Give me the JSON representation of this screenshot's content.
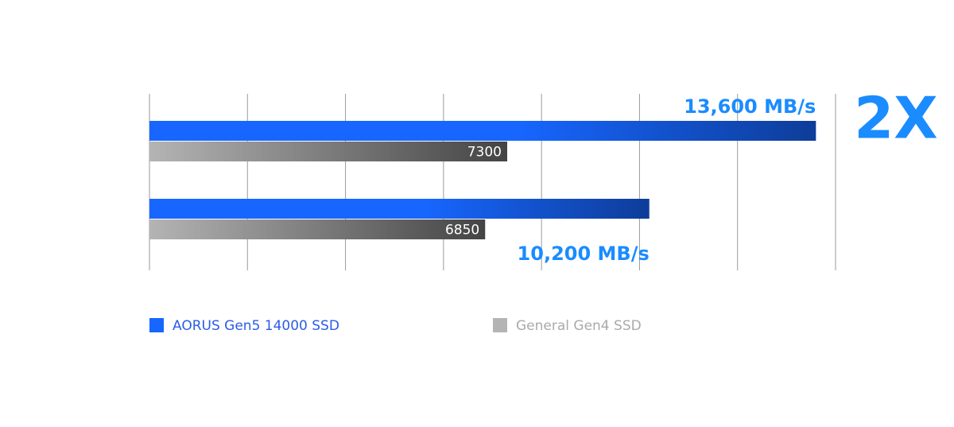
{
  "chart_data": {
    "type": "bar",
    "orientation": "horizontal",
    "categories": [
      null,
      null
    ],
    "series": [
      {
        "name": "AORUS Gen5 14000 SSD",
        "color": "#1766ff",
        "values": [
          13600,
          10200
        ],
        "value_labels": [
          "13,600 MB/s",
          "10,200 MB/s"
        ]
      },
      {
        "name": "General Gen4 SSD",
        "color": "#b4b4b4",
        "values": [
          7300,
          6850
        ]
      }
    ],
    "xlim": [
      0,
      14000
    ],
    "xticks": [
      0,
      2000,
      4000,
      6000,
      8000,
      10000,
      12000,
      14000
    ],
    "grid": true,
    "annotation": "2X",
    "legend": "bottom-left"
  }
}
